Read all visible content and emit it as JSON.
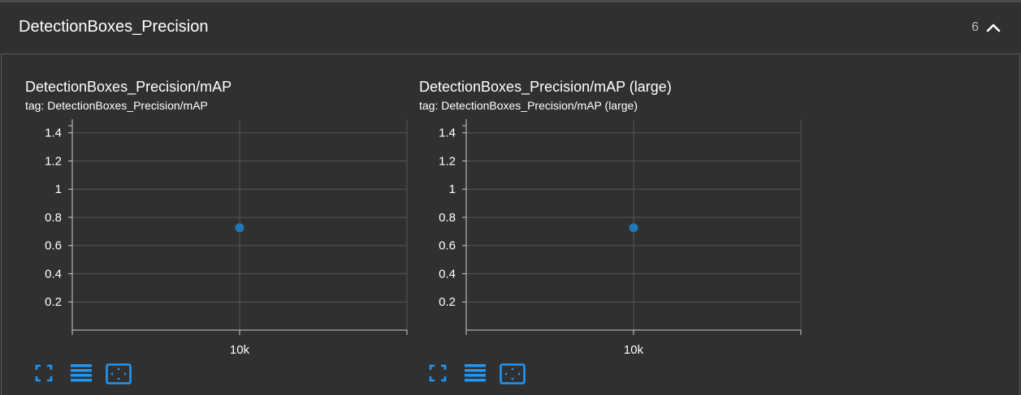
{
  "section": {
    "title": "DetectionBoxes_Precision",
    "count": "6"
  },
  "cards": [
    {
      "title": "DetectionBoxes_Precision/mAP",
      "tag": "tag: DetectionBoxes_Precision/mAP"
    },
    {
      "title": "DetectionBoxes_Precision/mAP (large)",
      "tag": "tag: DetectionBoxes_Precision/mAP (large)"
    }
  ],
  "icons": [
    "chevron-up-icon",
    "fullscreen-icon",
    "toggle-log-scale-icon",
    "fit-domain-icon"
  ],
  "colors": {
    "point": "#1f77b4",
    "accent": "#2196f3"
  },
  "chart_data": [
    {
      "type": "scatter",
      "title": "DetectionBoxes_Precision/mAP",
      "x": [
        10000
      ],
      "y": [
        0.726
      ],
      "xticks": [
        "10k"
      ],
      "yticks": [
        "0.2",
        "0.4",
        "0.6",
        "0.8",
        "1",
        "1.2",
        "1.4"
      ],
      "ylim": [
        0,
        1.45
      ],
      "grid": true
    },
    {
      "type": "scatter",
      "title": "DetectionBoxes_Precision/mAP (large)",
      "x": [
        10000
      ],
      "y": [
        0.726
      ],
      "xticks": [
        "10k"
      ],
      "yticks": [
        "0.2",
        "0.4",
        "0.6",
        "0.8",
        "1",
        "1.2",
        "1.4"
      ],
      "ylim": [
        0,
        1.45
      ],
      "grid": true
    }
  ]
}
